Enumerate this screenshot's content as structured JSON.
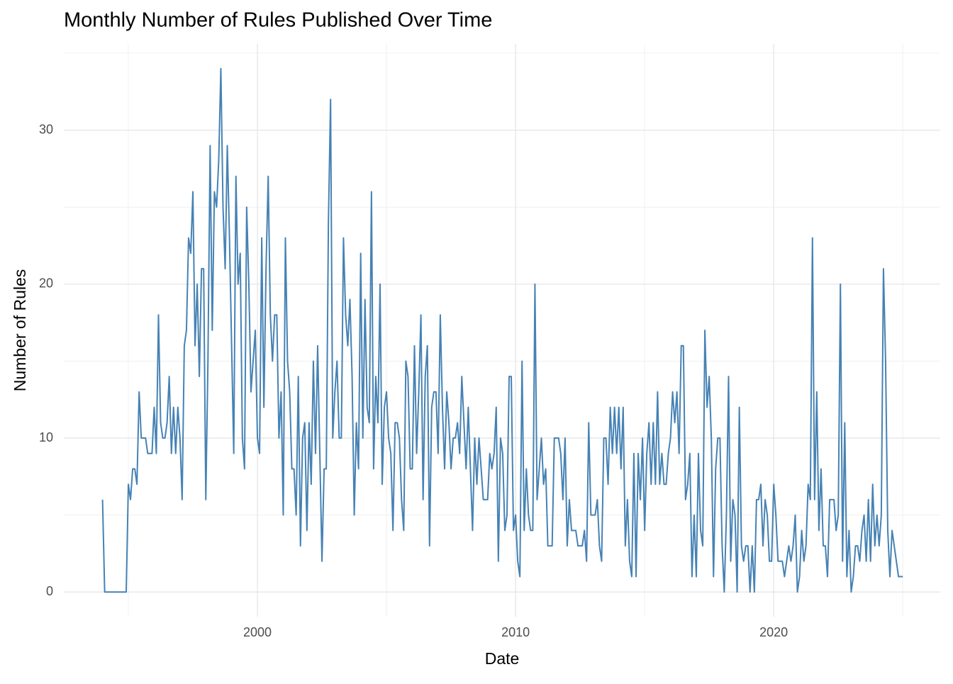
{
  "chart_data": {
    "type": "line",
    "title": "Monthly Number of Rules Published Over Time",
    "x_label": "Date",
    "y_label": "Number of Rules",
    "xlim": [
      1992.5,
      2026.45
    ],
    "ylim": [
      -1.6,
      35.6
    ],
    "xticks": [
      2000,
      2010,
      2020
    ],
    "yticks": [
      0,
      10,
      20,
      30
    ],
    "x_minor_ticks": [
      1995,
      2005,
      2015,
      2025
    ],
    "y_minor_ticks": [
      5,
      15,
      25,
      35
    ],
    "grid": true,
    "series": [
      {
        "name": "Rules",
        "color": "#4682b4",
        "x": [
          1994.0,
          1994.083,
          1994.167,
          1994.25,
          1994.333,
          1994.417,
          1994.5,
          1994.583,
          1994.667,
          1994.75,
          1994.833,
          1994.917,
          1995.0,
          1995.083,
          1995.167,
          1995.25,
          1995.333,
          1995.417,
          1995.5,
          1995.583,
          1995.667,
          1995.75,
          1995.833,
          1995.917,
          1996.0,
          1996.083,
          1996.167,
          1996.25,
          1996.333,
          1996.417,
          1996.5,
          1996.583,
          1996.667,
          1996.75,
          1996.833,
          1996.917,
          1997.0,
          1997.083,
          1997.167,
          1997.25,
          1997.333,
          1997.417,
          1997.5,
          1997.583,
          1997.667,
          1997.75,
          1997.833,
          1997.917,
          1998.0,
          1998.083,
          1998.167,
          1998.25,
          1998.333,
          1998.417,
          1998.5,
          1998.583,
          1998.667,
          1998.75,
          1998.833,
          1998.917,
          1999.0,
          1999.083,
          1999.167,
          1999.25,
          1999.333,
          1999.417,
          1999.5,
          1999.583,
          1999.667,
          1999.75,
          1999.833,
          1999.917,
          2000.0,
          2000.083,
          2000.167,
          2000.25,
          2000.333,
          2000.417,
          2000.5,
          2000.583,
          2000.667,
          2000.75,
          2000.833,
          2000.917,
          2001.0,
          2001.083,
          2001.167,
          2001.25,
          2001.333,
          2001.417,
          2001.5,
          2001.583,
          2001.667,
          2001.75,
          2001.833,
          2001.917,
          2002.0,
          2002.083,
          2002.167,
          2002.25,
          2002.333,
          2002.417,
          2002.5,
          2002.583,
          2002.667,
          2002.75,
          2002.833,
          2002.917,
          2003.0,
          2003.083,
          2003.167,
          2003.25,
          2003.333,
          2003.417,
          2003.5,
          2003.583,
          2003.667,
          2003.75,
          2003.833,
          2003.917,
          2004.0,
          2004.083,
          2004.167,
          2004.25,
          2004.333,
          2004.417,
          2004.5,
          2004.583,
          2004.667,
          2004.75,
          2004.833,
          2004.917,
          2005.0,
          2005.083,
          2005.167,
          2005.25,
          2005.333,
          2005.417,
          2005.5,
          2005.583,
          2005.667,
          2005.75,
          2005.833,
          2005.917,
          2006.0,
          2006.083,
          2006.167,
          2006.25,
          2006.333,
          2006.417,
          2006.5,
          2006.583,
          2006.667,
          2006.75,
          2006.833,
          2006.917,
          2007.0,
          2007.083,
          2007.167,
          2007.25,
          2007.333,
          2007.417,
          2007.5,
          2007.583,
          2007.667,
          2007.75,
          2007.833,
          2007.917,
          2008.0,
          2008.083,
          2008.167,
          2008.25,
          2008.333,
          2008.417,
          2008.5,
          2008.583,
          2008.667,
          2008.75,
          2008.833,
          2008.917,
          2009.0,
          2009.083,
          2009.167,
          2009.25,
          2009.333,
          2009.417,
          2009.5,
          2009.583,
          2009.667,
          2009.75,
          2009.833,
          2009.917,
          2010.0,
          2010.083,
          2010.167,
          2010.25,
          2010.333,
          2010.417,
          2010.5,
          2010.583,
          2010.667,
          2010.75,
          2010.833,
          2010.917,
          2011.0,
          2011.083,
          2011.167,
          2011.25,
          2011.333,
          2011.417,
          2011.5,
          2011.583,
          2011.667,
          2011.75,
          2011.833,
          2011.917,
          2012.0,
          2012.083,
          2012.167,
          2012.25,
          2012.333,
          2012.417,
          2012.5,
          2012.583,
          2012.667,
          2012.75,
          2012.833,
          2012.917,
          2013.0,
          2013.083,
          2013.167,
          2013.25,
          2013.333,
          2013.417,
          2013.5,
          2013.583,
          2013.667,
          2013.75,
          2013.833,
          2013.917,
          2014.0,
          2014.083,
          2014.167,
          2014.25,
          2014.333,
          2014.417,
          2014.5,
          2014.583,
          2014.667,
          2014.75,
          2014.833,
          2014.917,
          2015.0,
          2015.083,
          2015.167,
          2015.25,
          2015.333,
          2015.417,
          2015.5,
          2015.583,
          2015.667,
          2015.75,
          2015.833,
          2015.917,
          2016.0,
          2016.083,
          2016.167,
          2016.25,
          2016.333,
          2016.417,
          2016.5,
          2016.583,
          2016.667,
          2016.75,
          2016.833,
          2016.917,
          2017.0,
          2017.083,
          2017.167,
          2017.25,
          2017.333,
          2017.417,
          2017.5,
          2017.583,
          2017.667,
          2017.75,
          2017.833,
          2017.917,
          2018.0,
          2018.083,
          2018.167,
          2018.25,
          2018.333,
          2018.417,
          2018.5,
          2018.583,
          2018.667,
          2018.75,
          2018.833,
          2018.917,
          2019.0,
          2019.083,
          2019.167,
          2019.25,
          2019.333,
          2019.417,
          2019.5,
          2019.583,
          2019.667,
          2019.75,
          2019.833,
          2019.917,
          2020.0,
          2020.083,
          2020.167,
          2020.25,
          2020.333,
          2020.417,
          2020.5,
          2020.583,
          2020.667,
          2020.75,
          2020.833,
          2020.917,
          2021.0,
          2021.083,
          2021.167,
          2021.25,
          2021.333,
          2021.417,
          2021.5,
          2021.583,
          2021.667,
          2021.75,
          2021.833,
          2021.917,
          2022.0,
          2022.083,
          2022.167,
          2022.25,
          2022.333,
          2022.417,
          2022.5,
          2022.583,
          2022.667,
          2022.75,
          2022.833,
          2022.917,
          2023.0,
          2023.083,
          2023.167,
          2023.25,
          2023.333,
          2023.417,
          2023.5,
          2023.583,
          2023.667,
          2023.75,
          2023.833,
          2023.917,
          2024.0,
          2024.083,
          2024.167,
          2024.25,
          2024.333,
          2024.417,
          2024.5,
          2024.583,
          2024.667,
          2024.75,
          2024.833,
          2024.917,
          2025.0
        ],
        "values": [
          6,
          0,
          0,
          0,
          0,
          0,
          0,
          0,
          0,
          0,
          0,
          0,
          7,
          6,
          8,
          8,
          7,
          13,
          10,
          10,
          10,
          9,
          9,
          9,
          12,
          9,
          18,
          11,
          10,
          10,
          11,
          14,
          9,
          12,
          9,
          12,
          10,
          6,
          16,
          17,
          23,
          22,
          26,
          16,
          20,
          14,
          21,
          21,
          6,
          15,
          29,
          17,
          26,
          25,
          28,
          34,
          25,
          21,
          29,
          23,
          16,
          9,
          27,
          20,
          22,
          10,
          8,
          25,
          20,
          13,
          15,
          17,
          10,
          9,
          23,
          12,
          21,
          27,
          18,
          15,
          18,
          18,
          10,
          13,
          5,
          23,
          15,
          13,
          8,
          8,
          5,
          14,
          3,
          10,
          11,
          4,
          11,
          7,
          15,
          9,
          16,
          9,
          2,
          8,
          8,
          24,
          32,
          10,
          13,
          15,
          10,
          10,
          23,
          18,
          16,
          19,
          14,
          5,
          11,
          8,
          22,
          10,
          19,
          12,
          11,
          26,
          8,
          14,
          11,
          20,
          7,
          12,
          13,
          10,
          9,
          4,
          11,
          11,
          10,
          6,
          4,
          15,
          14,
          8,
          8,
          16,
          9,
          13,
          18,
          6,
          14,
          16,
          3,
          12,
          13,
          13,
          9,
          18,
          12,
          8,
          13,
          11,
          8,
          10,
          10,
          11,
          9,
          14,
          11,
          8,
          12,
          8,
          4,
          10,
          7,
          10,
          8,
          6,
          6,
          6,
          9,
          8,
          9,
          12,
          2,
          10,
          9,
          4,
          5,
          14,
          14,
          4,
          5,
          2,
          1,
          15,
          4,
          8,
          5,
          4,
          4,
          20,
          6,
          8,
          10,
          7,
          8,
          3,
          3,
          3,
          10,
          10,
          10,
          9,
          6,
          10,
          3,
          6,
          4,
          4,
          4,
          3,
          3,
          3,
          4,
          2,
          11,
          5,
          5,
          5,
          6,
          3,
          2,
          10,
          10,
          7,
          12,
          9,
          12,
          9,
          12,
          8,
          12,
          3,
          6,
          2,
          1,
          9,
          1,
          9,
          6,
          10,
          4,
          9,
          11,
          7,
          11,
          7,
          13,
          7,
          9,
          7,
          7,
          9,
          10,
          13,
          11,
          13,
          9,
          16,
          16,
          6,
          7,
          9,
          1,
          5,
          1,
          9,
          4,
          3,
          17,
          12,
          14,
          10,
          1,
          8,
          10,
          10,
          3,
          0,
          5,
          14,
          2,
          6,
          5,
          0,
          12,
          3,
          2,
          3,
          3,
          0,
          3,
          0,
          6,
          6,
          7,
          3,
          6,
          5,
          2,
          2,
          7,
          5,
          2,
          2,
          2,
          1,
          2,
          3,
          2,
          3,
          5,
          0,
          1,
          4,
          2,
          3,
          7,
          6,
          23,
          6,
          13,
          4,
          8,
          3,
          3,
          1,
          6,
          6,
          6,
          4,
          5,
          20,
          2,
          11,
          1,
          4,
          0,
          1,
          3,
          3,
          2,
          4,
          5,
          2,
          6,
          2,
          7,
          3,
          5,
          3,
          5,
          21,
          15,
          4,
          1,
          4,
          3,
          2,
          1,
          1,
          1
        ]
      }
    ]
  }
}
